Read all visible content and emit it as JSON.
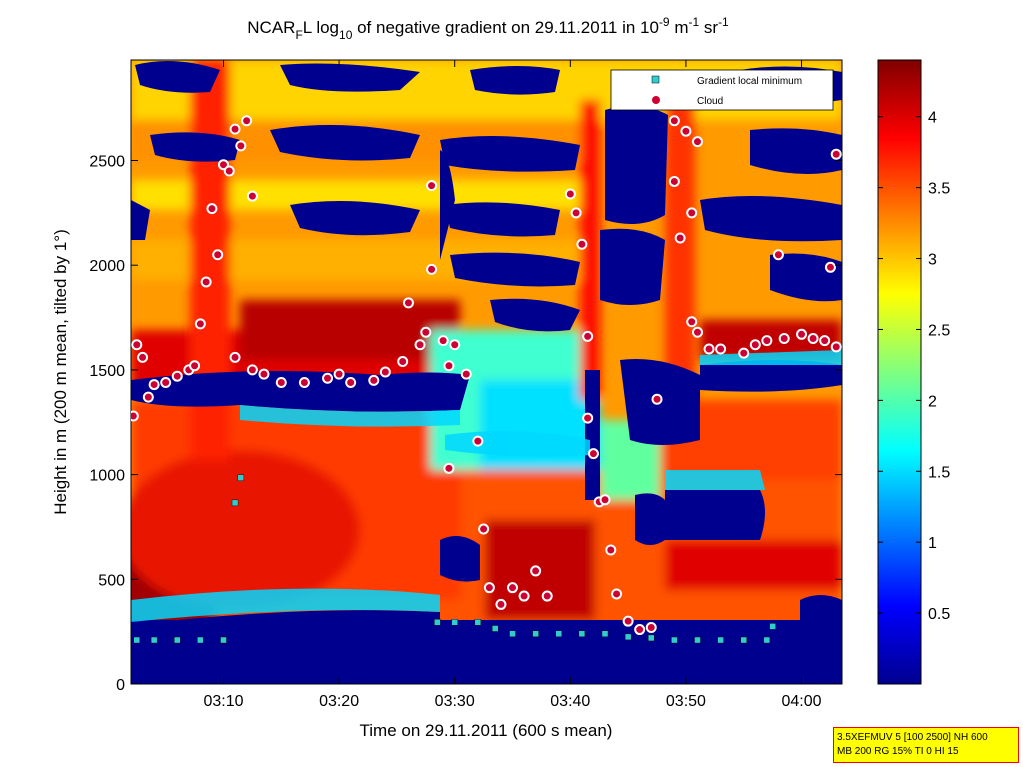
{
  "chart_data": {
    "type": "heatmap",
    "title": {
      "prefix": "NCAR",
      "sub_f": "F",
      "after_f": "L log",
      "sub_10": "10",
      "middle": " of negative gradient on 29.11.2011 in 10",
      "sup_1": "-9",
      "unit_m": " m",
      "sup_2": "-1",
      "unit_sr": " sr",
      "sup_3": "-1"
    },
    "xlabel": "Time on 29.11.2011 (600 s mean)",
    "ylabel": "Height in m (200 m mean, tilted by 1°)",
    "x_range_min": [
      2.0,
      63.5
    ],
    "x_ticks": [
      {
        "label": "03:10",
        "min": 10
      },
      {
        "label": "03:20",
        "min": 20
      },
      {
        "label": "03:30",
        "min": 30
      },
      {
        "label": "03:40",
        "min": 40
      },
      {
        "label": "03:50",
        "min": 50
      },
      {
        "label": "04:00",
        "min": 60
      }
    ],
    "ylim": [
      0,
      2980
    ],
    "y_ticks": [
      0,
      500,
      1000,
      1500,
      2000,
      2500
    ],
    "colorbar": {
      "range": [
        0,
        4.4
      ],
      "ticks": [
        "0.5",
        "1",
        "1.5",
        "2",
        "2.5",
        "3",
        "3.5",
        "4"
      ],
      "tick_values": [
        0.5,
        1,
        1.5,
        2,
        2.5,
        3,
        3.5,
        4
      ]
    },
    "legend": {
      "placement": "top-right",
      "entries": [
        "Gradient local minimum",
        "Cloud"
      ]
    },
    "series": [
      {
        "name": "Gradient local minimum",
        "marker": "square",
        "color": "#33cccc",
        "points": [
          [
            2.5,
            210
          ],
          [
            4,
            210
          ],
          [
            6,
            210
          ],
          [
            8,
            210
          ],
          [
            10,
            210
          ],
          [
            11,
            865
          ],
          [
            11.5,
            985
          ],
          [
            28.5,
            295
          ],
          [
            30,
            295
          ],
          [
            32,
            295
          ],
          [
            33.5,
            265
          ],
          [
            35,
            240
          ],
          [
            37,
            240
          ],
          [
            39,
            240
          ],
          [
            41,
            240
          ],
          [
            43,
            240
          ],
          [
            45,
            225
          ],
          [
            47,
            220
          ],
          [
            49,
            210
          ],
          [
            51,
            210
          ],
          [
            53,
            210
          ],
          [
            55,
            210
          ],
          [
            57,
            210
          ],
          [
            57.5,
            275
          ]
        ]
      },
      {
        "name": "Cloud",
        "marker": "circle",
        "color": "#cc0033",
        "points": [
          [
            2.2,
            1280
          ],
          [
            2.5,
            1620
          ],
          [
            3,
            1560
          ],
          [
            3.5,
            1370
          ],
          [
            4,
            1430
          ],
          [
            5,
            1440
          ],
          [
            6,
            1470
          ],
          [
            7,
            1500
          ],
          [
            7.5,
            1520
          ],
          [
            8,
            1720
          ],
          [
            8.5,
            1920
          ],
          [
            9,
            2270
          ],
          [
            9.5,
            2050
          ],
          [
            10,
            2480
          ],
          [
            10.5,
            2450
          ],
          [
            11,
            2650
          ],
          [
            11.5,
            2570
          ],
          [
            12,
            2690
          ],
          [
            12.5,
            2330
          ],
          [
            11,
            1560
          ],
          [
            12.5,
            1500
          ],
          [
            13.5,
            1480
          ],
          [
            15,
            1440
          ],
          [
            17,
            1440
          ],
          [
            19,
            1460
          ],
          [
            20,
            1480
          ],
          [
            21,
            1440
          ],
          [
            23,
            1450
          ],
          [
            24,
            1490
          ],
          [
            25.5,
            1540
          ],
          [
            26,
            1820
          ],
          [
            27,
            1620
          ],
          [
            27.5,
            1680
          ],
          [
            28,
            2380
          ],
          [
            28,
            1980
          ],
          [
            29,
            1640
          ],
          [
            30,
            1620
          ],
          [
            29.5,
            1520
          ],
          [
            31,
            1480
          ],
          [
            32,
            1160
          ],
          [
            29.5,
            1030
          ],
          [
            32.5,
            740
          ],
          [
            33,
            460
          ],
          [
            34,
            380
          ],
          [
            35,
            460
          ],
          [
            36,
            420
          ],
          [
            37,
            540
          ],
          [
            38,
            420
          ],
          [
            40,
            2340
          ],
          [
            40.5,
            2250
          ],
          [
            41,
            2100
          ],
          [
            41.5,
            1660
          ],
          [
            41.5,
            1270
          ],
          [
            42,
            1100
          ],
          [
            42.5,
            870
          ],
          [
            43,
            880
          ],
          [
            43.5,
            640
          ],
          [
            44,
            430
          ],
          [
            45,
            300
          ],
          [
            46,
            260
          ],
          [
            47,
            270
          ],
          [
            47.5,
            1360
          ],
          [
            49,
            2690
          ],
          [
            49,
            2400
          ],
          [
            49.5,
            2130
          ],
          [
            50,
            2640
          ],
          [
            50.5,
            2250
          ],
          [
            51,
            2590
          ],
          [
            50.5,
            1730
          ],
          [
            51,
            1680
          ],
          [
            52,
            1600
          ],
          [
            53,
            1600
          ],
          [
            55,
            1580
          ],
          [
            56,
            1620
          ],
          [
            57,
            1640
          ],
          [
            58,
            2050
          ],
          [
            58.5,
            1650
          ],
          [
            60,
            1670
          ],
          [
            61,
            1650
          ],
          [
            62,
            1640
          ],
          [
            63,
            2530
          ],
          [
            63,
            1610
          ],
          [
            62.5,
            1990
          ]
        ]
      }
    ]
  },
  "info_box": {
    "line1": "3.5XEFMUV 5 [100 2500] NH 600",
    "line2": "MB 200 RG 15% TI 0 HI 15"
  },
  "colors": {
    "low": "#00008f",
    "cyan": "#00ffff",
    "yellow": "#ffff00",
    "high": "#800000"
  }
}
